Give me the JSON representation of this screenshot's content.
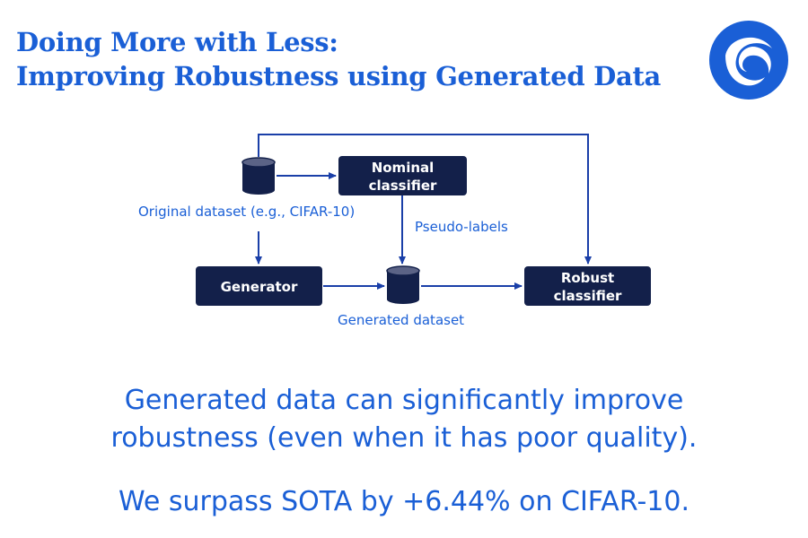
{
  "title": {
    "line1": "Doing More with Less:",
    "line2": "Improving Robustness using Generated Data"
  },
  "logo": {
    "icon": "swirl-logo-icon",
    "color": "#1a5fd6"
  },
  "diagram": {
    "nodes": {
      "nominal_classifier": {
        "line1": "Nominal",
        "line2": "classifier"
      },
      "generator": {
        "label": "Generator"
      },
      "robust_classifier": {
        "line1": "Robust",
        "line2": "classifier"
      }
    },
    "labels": {
      "original_dataset": "Original dataset (e.g., CIFAR-10)",
      "pseudo_labels": "Pseudo-labels",
      "generated_dataset": "Generated dataset"
    },
    "colors": {
      "node": "#13204a",
      "edge": "#1a3fa8",
      "text": "#1a5fd6"
    }
  },
  "claims": {
    "line1": "Generated data can significantly improve",
    "line2": "robustness (even when it has poor quality).",
    "line3": "We surpass SOTA by +6.44% on CIFAR-10."
  }
}
